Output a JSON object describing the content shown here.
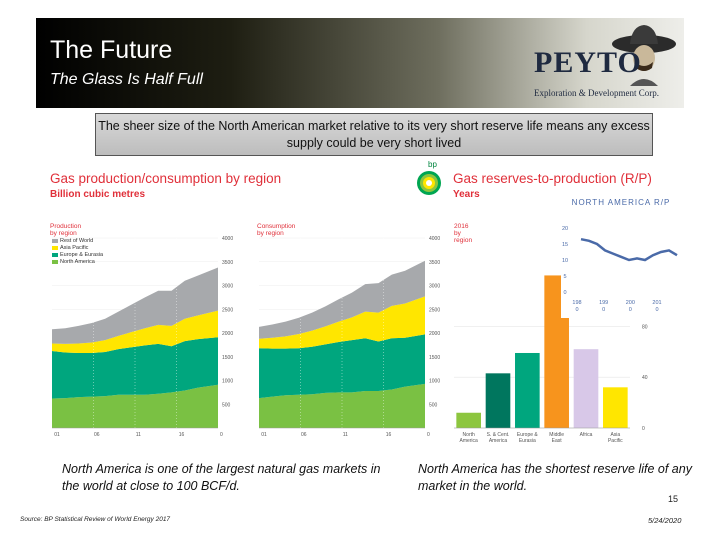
{
  "slide": {
    "title": "The Future",
    "subtitle": "The Glass Is Half Full",
    "logo_text": "PEYTO",
    "logo_subtext": "Exploration & Development Corp.",
    "callout": "The sheer size of the North American market relative to its very short reserve life means any excess supply could be very short lived",
    "bp_label": "bp",
    "caption_left": "North America is one of the largest natural gas markets in the world at close to 100 BCF/d.",
    "caption_right": "North America has the shortest reserve life of any market in the world.",
    "source": "Source: BP Statistical Review of World Energy 2017",
    "page_number": "15",
    "date": "5/24/2020"
  },
  "colors": {
    "rest_of_world": "#a7a9ac",
    "asia_pacific": "#ffe600",
    "europe_eurasia": "#00a67e",
    "north_america": "#7ac143",
    "accent_red": "#e0303a",
    "inset_line": "#4a6aa8"
  },
  "chart_data": [
    {
      "type": "area",
      "title": "Gas production/consumption by region",
      "subtitle": "Billion cubic metres",
      "panels": [
        {
          "title": "Production by region",
          "x_ticks": [
            "01",
            "06",
            "11",
            "16"
          ],
          "x_extra_tick": "0",
          "y_ticks": [
            "500",
            "1000",
            "1500",
            "2000",
            "2500",
            "3000",
            "3500",
            "4000"
          ],
          "ylim": [
            0,
            4000
          ],
          "x": [
            1991,
            1993,
            1995,
            1997,
            1999,
            2001,
            2003,
            2005,
            2007,
            2009,
            2011,
            2013,
            2016
          ],
          "series": [
            {
              "name": "North America",
              "values": [
                620,
                630,
                650,
                660,
                670,
                700,
                700,
                700,
                720,
                750,
                790,
                850,
                910
              ]
            },
            {
              "name": "Europe & Eurasia",
              "values": [
                1000,
                960,
                930,
                920,
                930,
                960,
                1000,
                1040,
                1050,
                970,
                1040,
                1020,
                1000
              ]
            },
            {
              "name": "Asia Pacific",
              "values": [
                160,
                180,
                200,
                220,
                250,
                280,
                320,
                360,
                400,
                430,
                470,
                500,
                560
              ]
            },
            {
              "name": "Rest of World",
              "values": [
                300,
                330,
                370,
                410,
                450,
                510,
                580,
                650,
                720,
                740,
                800,
                840,
                910
              ]
            }
          ]
        },
        {
          "title": "Consumption by region",
          "x_ticks": [
            "01",
            "06",
            "11",
            "16"
          ],
          "x_extra_tick": "0",
          "y_ticks": [
            "500",
            "1000",
            "1500",
            "2000",
            "2500",
            "3000",
            "3500",
            "4000"
          ],
          "ylim": [
            0,
            4000
          ],
          "x": [
            1991,
            1993,
            1995,
            1997,
            1999,
            2001,
            2003,
            2005,
            2007,
            2009,
            2011,
            2013,
            2016
          ],
          "series": [
            {
              "name": "North America",
              "values": [
                630,
                660,
                690,
                700,
                710,
                740,
                750,
                750,
                780,
                780,
                810,
                870,
                930
              ]
            },
            {
              "name": "Europe & Eurasia",
              "values": [
                1050,
                1010,
                980,
                980,
                1000,
                1020,
                1060,
                1100,
                1110,
                1040,
                1080,
                1030,
                1040
              ]
            },
            {
              "name": "Asia Pacific",
              "values": [
                200,
                230,
                260,
                300,
                340,
                380,
                430,
                480,
                560,
                610,
                680,
                720,
                800
              ]
            },
            {
              "name": "Rest of World",
              "values": [
                250,
                280,
                310,
                340,
                380,
                420,
                470,
                520,
                580,
                620,
                660,
                690,
                750
              ]
            }
          ]
        }
      ],
      "legend": [
        "Rest of World",
        "Asia Pacific",
        "Europe & Eurasia",
        "North America"
      ],
      "legend_placement": "top-left"
    },
    {
      "type": "bar",
      "title": "Gas reserves-to-production (R/P)",
      "subtitle": "Years",
      "panel_title": "2016 by region",
      "categories": [
        "North America",
        "S. & Cent. America",
        "Europe & Eurasia",
        "Middle East",
        "Africa",
        "Asia Pacific"
      ],
      "category_labels": [
        [
          "North",
          "America"
        ],
        [
          "S. & Cent.",
          "America"
        ],
        [
          "Europe &",
          "Eurasia"
        ],
        [
          "Middle",
          "East"
        ],
        [
          "Africa"
        ],
        [
          "Asia",
          "Pacific"
        ]
      ],
      "values": [
        12,
        43,
        59,
        120,
        62,
        32
      ],
      "colors": [
        "#8dc63f",
        "#00765e",
        "#00a67e",
        "#f7941d",
        "#d8c8e8",
        "#ffe600"
      ],
      "y_ticks": [
        "0",
        "40",
        "80"
      ],
      "ylim": [
        0,
        140
      ]
    },
    {
      "type": "line",
      "title": "NORTH AMERICA R/P",
      "x_ticks": [
        [
          "198",
          "0"
        ],
        [
          "199",
          "0"
        ],
        [
          "200",
          "0"
        ],
        [
          "201",
          "0"
        ]
      ],
      "y_ticks": [
        "0",
        "5",
        "10",
        "15",
        "20"
      ],
      "ylim": [
        0,
        20
      ],
      "x": [
        1980,
        1983,
        1986,
        1989,
        1992,
        1995,
        1998,
        2001,
        2004,
        2007,
        2010,
        2013,
        2016
      ],
      "values": [
        16.5,
        16.0,
        15.0,
        13.0,
        12.0,
        11.0,
        10.0,
        10.5,
        10.0,
        11.5,
        12.5,
        13.0,
        11.5
      ]
    }
  ]
}
